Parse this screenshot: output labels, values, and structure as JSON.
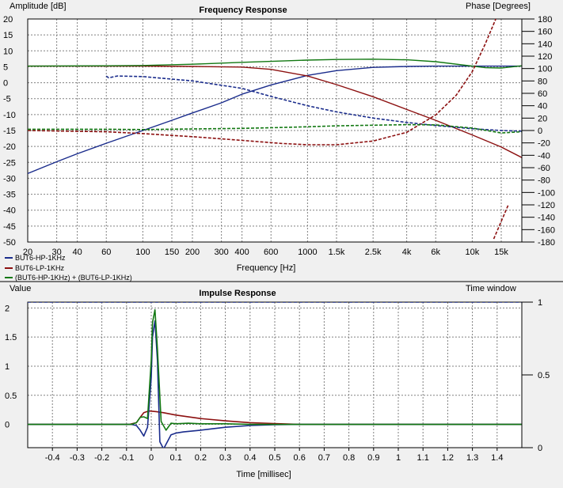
{
  "chart_data": [
    {
      "type": "line",
      "title": "Frequency Response",
      "xlabel": "Frequency [Hz]",
      "ylabel": "Amplitude [dB]",
      "y2label": "Phase [Degrees]",
      "xscale": "log",
      "xlim": [
        20,
        20000
      ],
      "ylim": [
        -50,
        20
      ],
      "y2lim": [
        -180,
        180
      ],
      "xticks": [
        20,
        30,
        40,
        60,
        100,
        150,
        200,
        300,
        400,
        600,
        1000,
        1500,
        2500,
        4000,
        6000,
        10000,
        15000
      ],
      "xtick_labels": [
        "20",
        "30",
        "40",
        "60",
        "100",
        "150",
        "200",
        "300",
        "400",
        "600",
        "1000",
        "1.5k",
        "2.5k",
        "4k",
        "6k",
        "10k",
        "15k"
      ],
      "yticks": [
        20,
        15,
        10,
        5,
        0,
        -5,
        -10,
        -15,
        -20,
        -25,
        -30,
        -35,
        -40,
        -45,
        -50
      ],
      "y2ticks": [
        180,
        160,
        140,
        120,
        100,
        80,
        60,
        40,
        20,
        0,
        -20,
        -40,
        -60,
        -80,
        -100,
        -120,
        -140,
        -160,
        -180
      ],
      "grid": true,
      "legend_position": "bottom-left",
      "legend": [
        "BUT6-HP-1KHz",
        "BUT6-LP-1KHz",
        "(BUT6-HP-1KHz) + (BUT6-LP-1KHz)"
      ],
      "series": [
        {
          "name": "BUT6-HP-1KHz",
          "kind": "amplitude",
          "axis": "left",
          "color": "#1a2c8c",
          "x": [
            20,
            30,
            40,
            60,
            100,
            150,
            200,
            300,
            400,
            600,
            1000,
            1500,
            2500,
            4000,
            6000,
            10000,
            15000,
            20000
          ],
          "y": [
            -28.5,
            -24.8,
            -22.3,
            -19,
            -15,
            -11.8,
            -9.5,
            -6.3,
            -3.6,
            -0.7,
            2.3,
            3.8,
            4.8,
            5.1,
            5.2,
            5.2,
            5.2,
            5.2
          ]
        },
        {
          "name": "BUT6-LP-1KHz",
          "kind": "amplitude",
          "axis": "left",
          "color": "#8c1010",
          "x": [
            20,
            60,
            100,
            200,
            400,
            600,
            1000,
            1500,
            2500,
            4000,
            6000,
            10000,
            15000,
            20000
          ],
          "y": [
            5.2,
            5.2,
            5.2,
            5.1,
            4.9,
            4.2,
            2.1,
            -0.6,
            -4.4,
            -8.4,
            -11.8,
            -16.4,
            -20.2,
            -23.5
          ]
        },
        {
          "name": "(BUT6-HP-1KHz) + (BUT6-LP-1KHz)",
          "kind": "amplitude",
          "axis": "left",
          "color": "#127812",
          "x": [
            20,
            60,
            100,
            200,
            400,
            600,
            1000,
            1500,
            2500,
            4000,
            6000,
            10000,
            12000,
            15000,
            20000
          ],
          "y": [
            5.2,
            5.3,
            5.4,
            5.8,
            6.4,
            6.7,
            7.1,
            7.3,
            7.4,
            7.2,
            6.6,
            5.2,
            4.7,
            4.6,
            5.3
          ]
        },
        {
          "name": "BUT6-HP-1KHz",
          "kind": "phase",
          "axis": "right",
          "color": "#1a2c8c",
          "x": [
            60,
            62,
            70,
            100,
            200,
            400,
            600,
            1000,
            1500,
            2500,
            4000,
            6000,
            10000,
            15000,
            20000
          ],
          "y": [
            88,
            85,
            88,
            87,
            80,
            68,
            55,
            40,
            30,
            20,
            13,
            8,
            3,
            0,
            -1
          ]
        },
        {
          "name": "BUT6-LP-1KHz",
          "kind": "phase",
          "axis": "right",
          "color": "#8c1010",
          "x": [
            20,
            60,
            100,
            200,
            400,
            700,
            1000,
            1500,
            2500,
            4000,
            6000,
            8000,
            10000,
            12000,
            14000
          ],
          "y": [
            0,
            -2,
            -5,
            -10,
            -16,
            -21,
            -23,
            -23,
            -17,
            -3,
            25,
            57,
            95,
            140,
            182
          ]
        },
        {
          "name": "BUT6-LP-1KHz",
          "kind": "phase-wrap",
          "axis": "right",
          "color": "#8c1010",
          "x": [
            13500,
            16500
          ],
          "y": [
            -175,
            -121
          ]
        },
        {
          "name": "(BUT6-HP-1KHz) + (BUT6-LP-1KHz)",
          "kind": "phase",
          "axis": "right",
          "color": "#127812",
          "x": [
            20,
            60,
            100,
            200,
            400,
            600,
            1000,
            1500,
            2500,
            4000,
            6000,
            10000,
            15000,
            20000
          ],
          "y": [
            2,
            2,
            1.5,
            2.5,
            3.5,
            4.5,
            6,
            7.5,
            8.5,
            9.5,
            9,
            4,
            -4,
            -2
          ]
        }
      ]
    },
    {
      "type": "line",
      "title": "Impulse Response",
      "xlabel": "Time [millisec]",
      "ylabel": "Value",
      "y2label": "Time window",
      "xlim": [
        -0.5,
        1.5
      ],
      "ylim": [
        -0.4,
        2.1
      ],
      "y2lim": [
        0,
        1
      ],
      "xticks": [
        -0.4,
        -0.3,
        -0.2,
        -0.1,
        0,
        0.1,
        0.2,
        0.3,
        0.4,
        0.5,
        0.6,
        0.7,
        0.8,
        0.9,
        1,
        1.1,
        1.2,
        1.3,
        1.4
      ],
      "xtick_labels": [
        "-0.4",
        "-0.3",
        "-0.2",
        "-0.1",
        "0",
        "0.1",
        "0.2",
        "0.3",
        "0.4",
        "0.5",
        "0.6",
        "0.7",
        "0.8",
        "0.9",
        "1",
        "1.1",
        "1.2",
        "1.3",
        "1.4"
      ],
      "yticks": [
        2,
        1.5,
        1,
        0.5,
        0
      ],
      "ytick_labels": [
        "2",
        "1.5",
        "1",
        "0.5",
        "0"
      ],
      "y2ticks": [
        1,
        0.5,
        0
      ],
      "y2tick_labels": [
        "1",
        "0.5",
        "0"
      ],
      "grid": true,
      "series": [
        {
          "name": "BUT6-LP-1KHz",
          "color": "#8c1010",
          "x": [
            -0.5,
            -0.09,
            -0.06,
            -0.045,
            -0.03,
            -0.01,
            0.02,
            0.05,
            0.1,
            0.2,
            0.3,
            0.4,
            0.5,
            0.6,
            1.5
          ],
          "y": [
            0,
            0,
            0.03,
            0.12,
            0.2,
            0.23,
            0.22,
            0.2,
            0.16,
            0.1,
            0.06,
            0.03,
            0.015,
            0,
            0
          ]
        },
        {
          "name": "BUT6-HP-1KHz",
          "color": "#1a2c8c",
          "x": [
            -0.5,
            -0.08,
            -0.06,
            -0.045,
            -0.03,
            -0.015,
            0,
            0.005,
            0.015,
            0.025,
            0.035,
            0.05,
            0.065,
            0.08,
            0.1,
            0.13,
            0.2,
            0.3,
            0.4,
            0.5,
            0.6,
            1.5
          ],
          "y": [
            0,
            0,
            -0.02,
            -0.1,
            -0.2,
            -0.05,
            0.8,
            1.5,
            1.78,
            1.1,
            -0.3,
            -0.42,
            -0.3,
            -0.18,
            -0.15,
            -0.13,
            -0.1,
            -0.05,
            -0.02,
            -0.005,
            0,
            0
          ]
        },
        {
          "name": "(BUT6-HP-1KHz) + (BUT6-LP-1KHz)",
          "color": "#127812",
          "x": [
            -0.5,
            -0.08,
            -0.06,
            -0.045,
            -0.03,
            -0.015,
            0,
            0.005,
            0.015,
            0.025,
            0.04,
            0.06,
            0.08,
            0.1,
            0.15,
            0.2,
            0.3,
            0.4,
            0.6,
            1.5
          ],
          "y": [
            0,
            0,
            0.03,
            0.12,
            0.13,
            0.1,
            1.1,
            1.75,
            1.97,
            1.3,
            0.05,
            -0.1,
            0.02,
            0.01,
            0.02,
            0.01,
            0.01,
            0,
            0,
            0
          ]
        },
        {
          "name": "Time window",
          "axis": "right",
          "style": "dashed",
          "color": "#1a2c8c",
          "x": [
            -0.5,
            1.5
          ],
          "y": [
            1,
            1
          ]
        }
      ]
    }
  ]
}
